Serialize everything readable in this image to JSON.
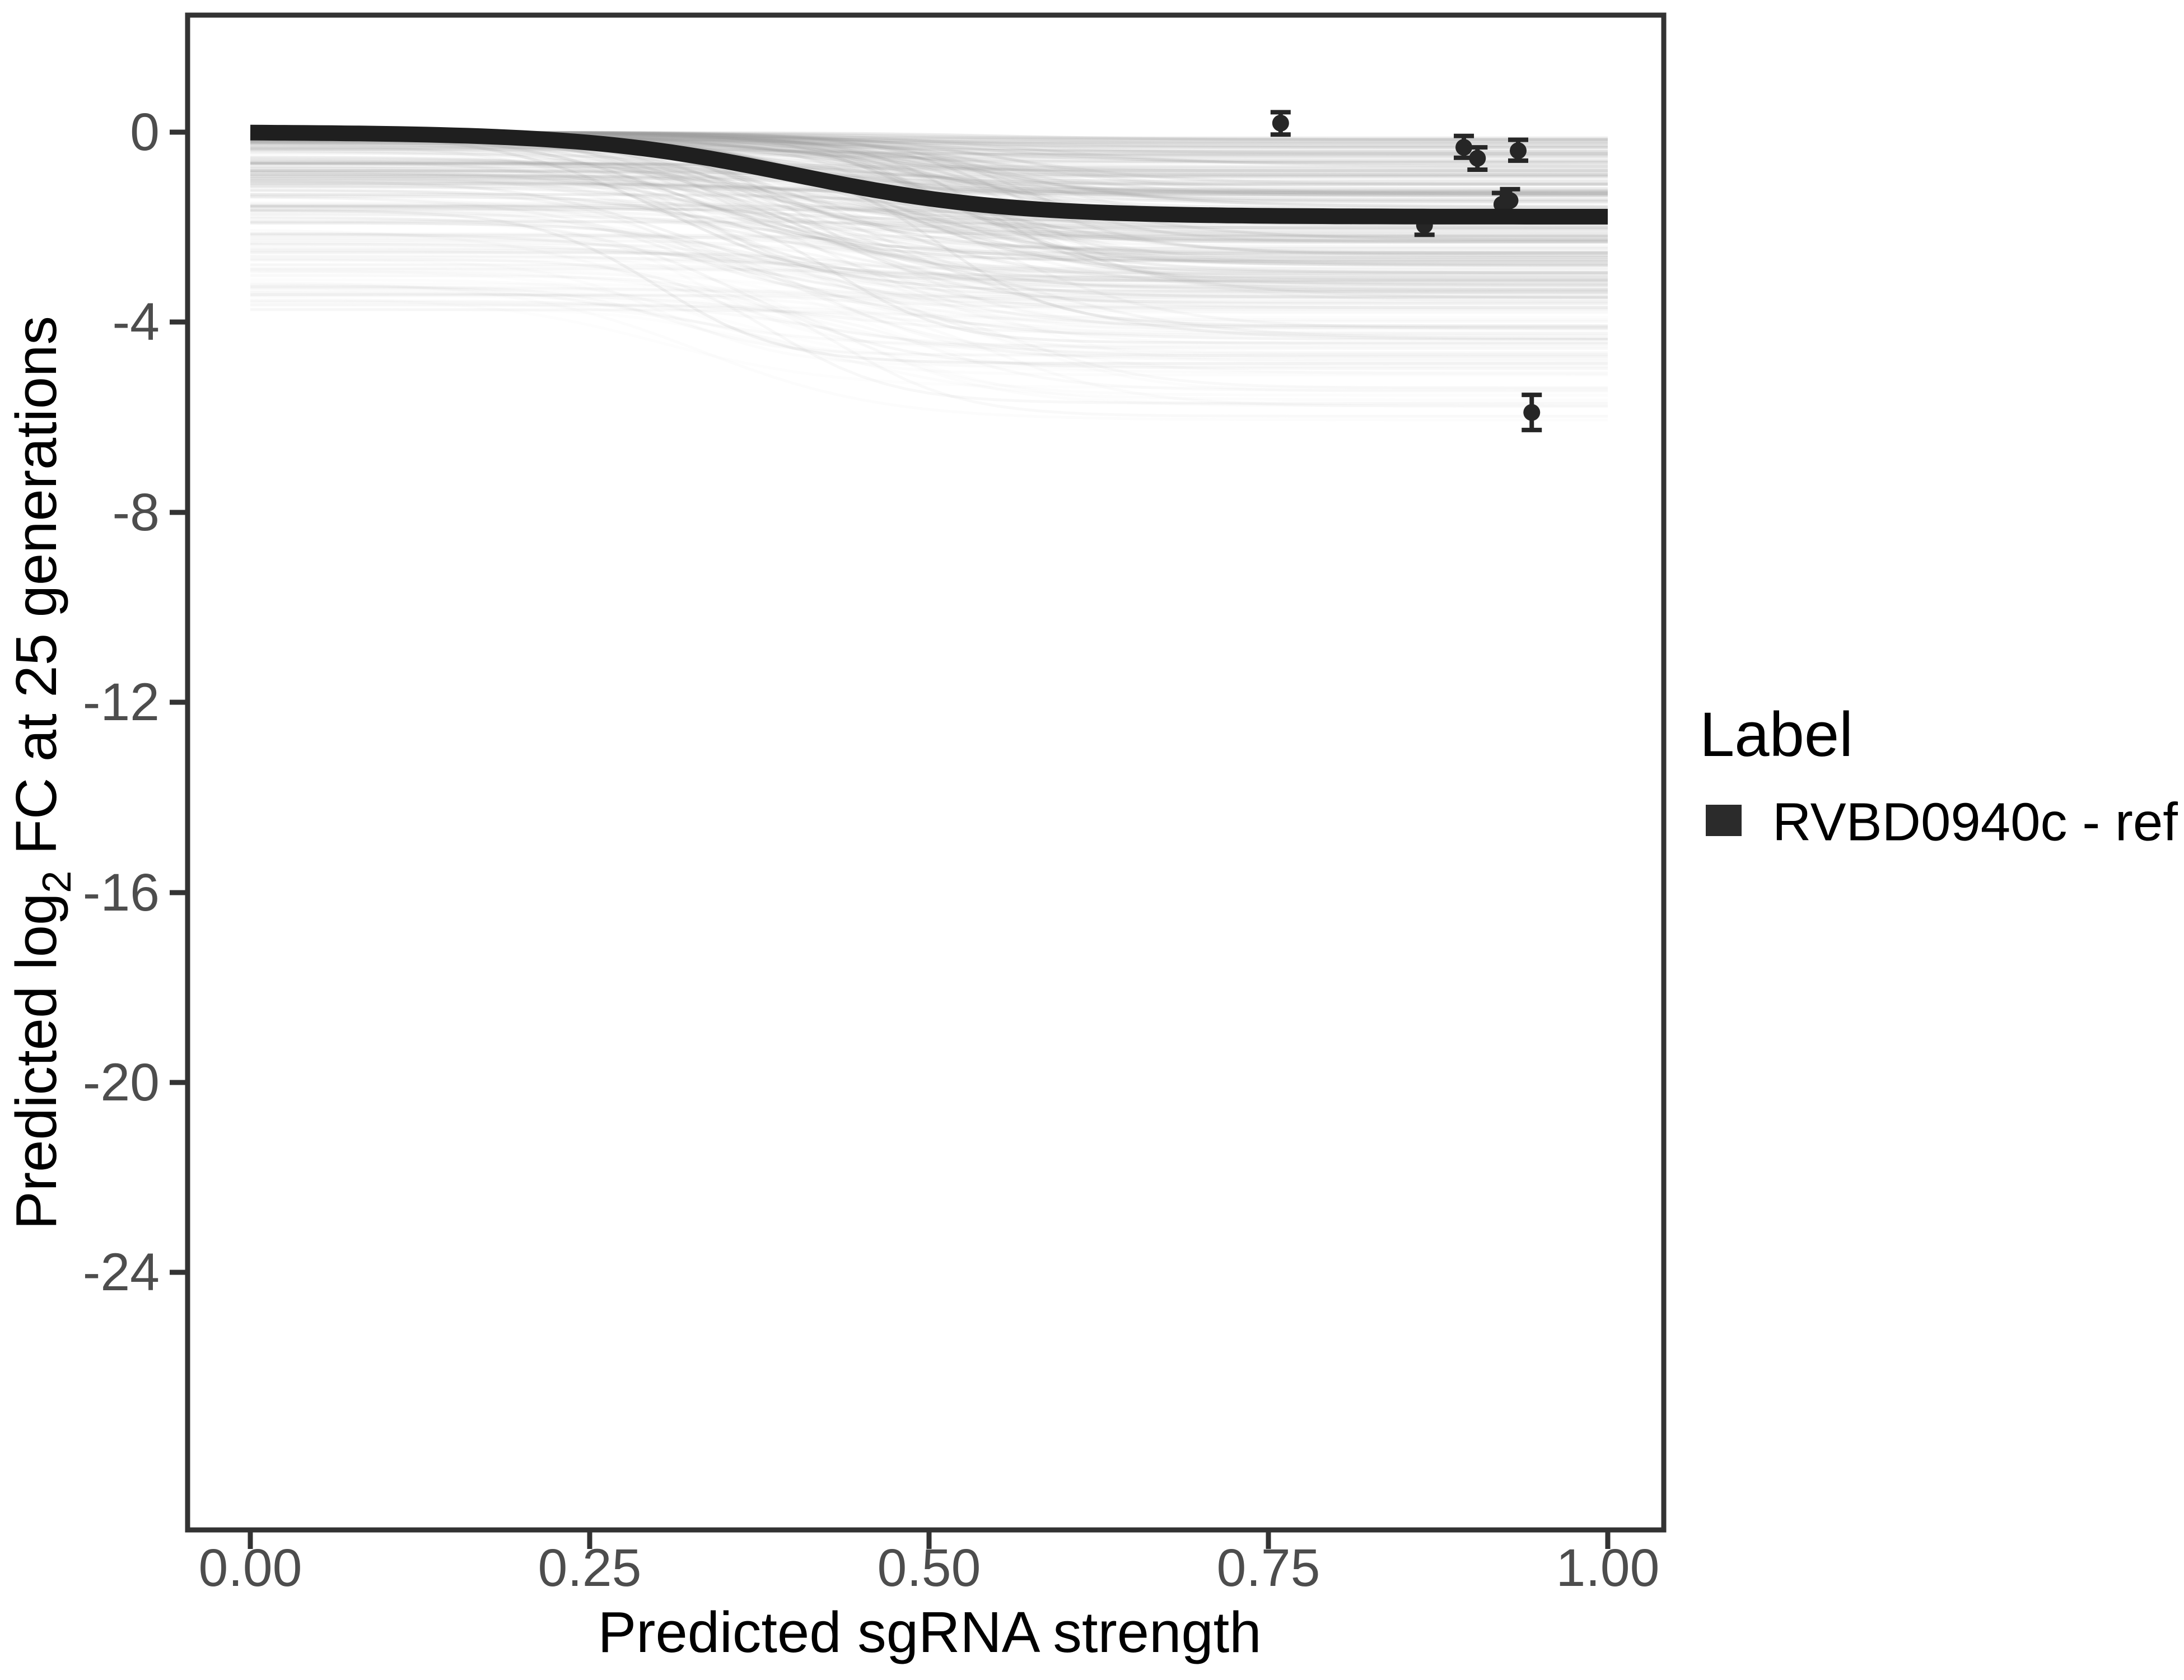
{
  "figure": {
    "background": "#ffffff",
    "description": "Posterior predicted log2 fold-change vs predicted sgRNA strength with ensemble draws, reference fit curve and observed points with error bars"
  },
  "axes": {
    "x": {
      "title": "Predicted sgRNA strength",
      "tick_labels": [
        "0.00",
        "0.25",
        "0.50",
        "0.75",
        "1.00"
      ],
      "tick_values": [
        0,
        0.25,
        0.5,
        0.75,
        1.0
      ]
    },
    "y": {
      "title_prefix": "Predicted  log",
      "title_sub": "2",
      "title_suffix": " FC at 25 generations",
      "tick_labels": [
        "0",
        "-4",
        "-8",
        "-12",
        "-16",
        "-20",
        "-24"
      ],
      "tick_values": [
        0,
        -4,
        -8,
        -12,
        -16,
        -20,
        -24
      ]
    }
  },
  "legend": {
    "title": "Label",
    "entries": [
      {
        "label": "RVBD0940c - ref",
        "key_color": "#2b2b2b",
        "key_shape": "thick-line"
      }
    ]
  },
  "colors": {
    "panel_border": "#333333",
    "tick_mark": "#333333",
    "tick_label": "#4d4d4d",
    "axis_title": "#000000",
    "ref_curve": "#1f1f1f",
    "point": "#262626",
    "ensemble": "#9f9f9f",
    "legend_key": "#2b2b2b"
  },
  "chart_data": {
    "type": "line",
    "title": "",
    "xlabel": "Predicted sgRNA strength",
    "ylabel": "Predicted log2 FC at 25 generations",
    "x_axis_range": [
      -0.05,
      1.04
    ],
    "y_axis_range": [
      -29.4,
      2.4
    ],
    "x_ticks": [
      0,
      0.25,
      0.5,
      0.75,
      1.0
    ],
    "y_ticks": [
      0,
      -4,
      -8,
      -12,
      -16,
      -20,
      -24
    ],
    "grid": false,
    "legend_position": "right-middle",
    "ref_curve": {
      "label": "RVBD0940c - ref",
      "color": "#1f1f1f",
      "model": "y = L / (1 + exp(-(x - x0)/s))",
      "sigmoid": {
        "L": -1.78,
        "x0": 0.4,
        "s": 0.077
      },
      "x_domain": [
        0,
        1
      ],
      "sampled_points": {
        "x": [
          0,
          0.1,
          0.2,
          0.25,
          0.3,
          0.37,
          0.4,
          0.5,
          0.6,
          0.7,
          0.8,
          0.9,
          1.0
        ],
        "y": [
          -0.01,
          -0.04,
          -0.13,
          -0.22,
          -0.39,
          -0.73,
          -0.89,
          -1.4,
          -1.66,
          -1.75,
          -1.77,
          -1.78,
          -1.78
        ]
      }
    },
    "points": [
      {
        "x": 0.759,
        "y": 0.19,
        "ymin": -0.05,
        "ymax": 0.42
      },
      {
        "x": 0.894,
        "y": -0.32,
        "ymin": -0.54,
        "ymax": -0.08
      },
      {
        "x": 0.904,
        "y": -0.55,
        "ymin": -0.79,
        "ymax": -0.32
      },
      {
        "x": 0.934,
        "y": -0.39,
        "ymin": -0.6,
        "ymax": -0.16
      },
      {
        "x": 0.922,
        "y": -1.52,
        "ymin": -1.81,
        "ymax": -1.28
      },
      {
        "x": 0.928,
        "y": -1.44,
        "ymin": -1.67,
        "ymax": -1.2
      },
      {
        "x": 0.865,
        "y": -1.96,
        "ymin": -2.16,
        "ymax": -1.73
      },
      {
        "x": 0.944,
        "y": -5.9,
        "ymin": -6.27,
        "ymax": -5.53
      }
    ],
    "ensemble": {
      "description": "Translucent gray posterior-draw sigmoid curves forming a band; estimated from pixels",
      "count": 300,
      "color": "#9f9f9f",
      "start_y_range": [
        0,
        -3.8
      ],
      "end_y_range": [
        -0.05,
        -4.6
      ],
      "midpoint_range": [
        0.3,
        0.58
      ],
      "slope_scale_range": [
        0.04,
        0.095
      ],
      "x_domain": [
        0,
        1
      ],
      "seed": 12345
    }
  }
}
